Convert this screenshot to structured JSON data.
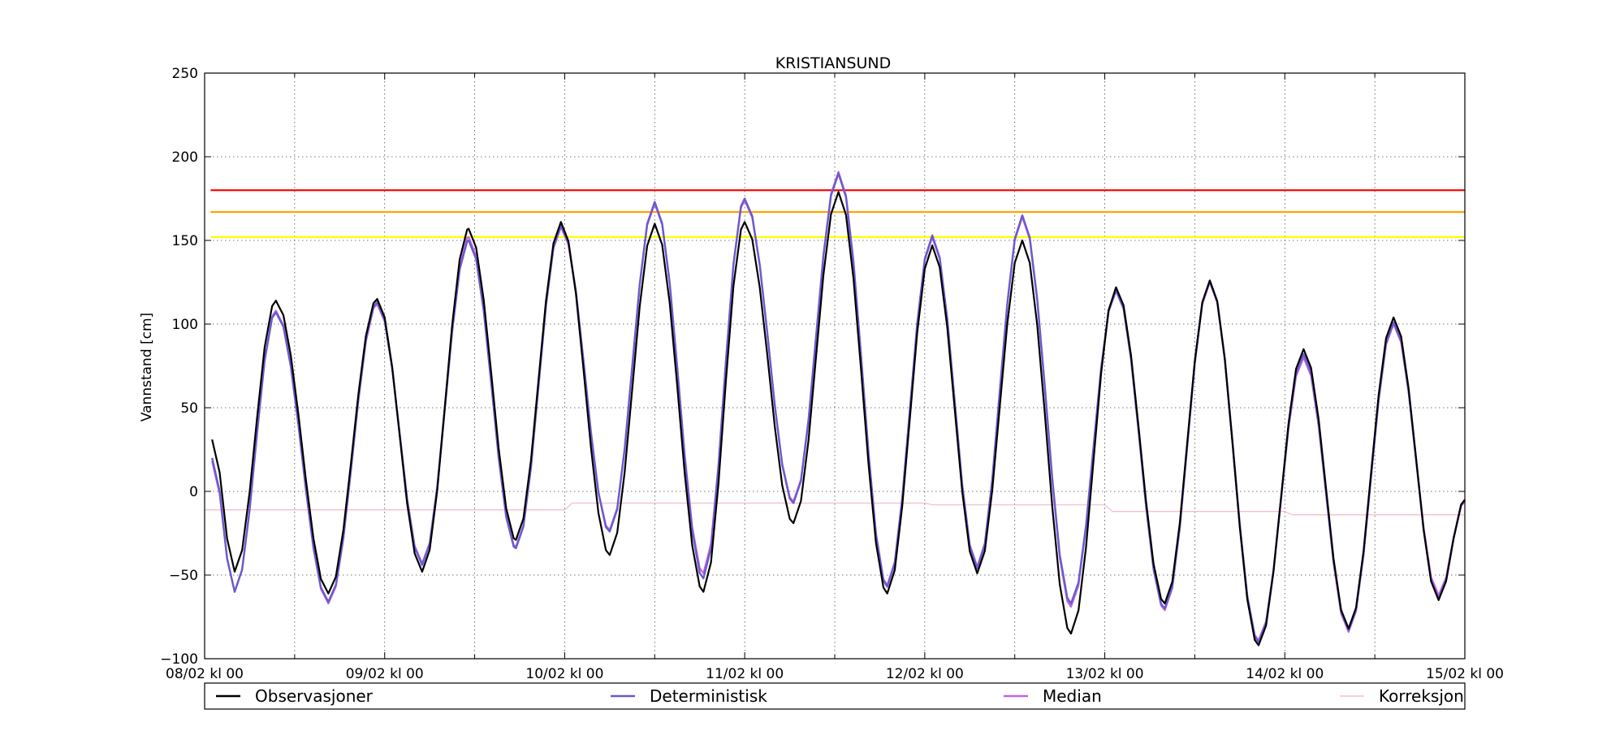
{
  "chart_data": {
    "type": "line",
    "title": "KRISTIANSUND",
    "xlabel": "",
    "ylabel": "Vannstand [cm]",
    "ylim": [
      -100,
      250
    ],
    "yticks": [
      -100,
      -50,
      0,
      50,
      100,
      150,
      200,
      250
    ],
    "xlim_hours": [
      0,
      168
    ],
    "xticks": [
      {
        "hour": 0,
        "label": "08/02 kl 00"
      },
      {
        "hour": 24,
        "label": "09/02 kl 00"
      },
      {
        "hour": 48,
        "label": "10/02 kl 00"
      },
      {
        "hour": 72,
        "label": "11/02 kl 00"
      },
      {
        "hour": 96,
        "label": "12/02 kl 00"
      },
      {
        "hour": 120,
        "label": "13/02 kl 00"
      },
      {
        "hour": 144,
        "label": "14/02 kl 00"
      },
      {
        "hour": 168,
        "label": "15/02 kl 00"
      }
    ],
    "minor_xtick_hours": [
      12,
      36,
      60,
      84,
      108,
      132,
      156
    ],
    "grid": true,
    "legend_position": "bottom",
    "thresholds": [
      {
        "value": 180,
        "color": "#ff0000"
      },
      {
        "value": 167,
        "color": "#ffa500"
      },
      {
        "value": 152,
        "color": "#ffff00"
      }
    ],
    "series": [
      {
        "name": "Observasjoner",
        "color": "#000000",
        "extrema": [
          [
            1,
            31
          ],
          [
            4,
            -48
          ],
          [
            9.5,
            114
          ],
          [
            16.5,
            -61
          ],
          [
            23,
            115
          ],
          [
            29,
            -48
          ],
          [
            35.2,
            157
          ],
          [
            41.5,
            -29
          ],
          [
            47.5,
            161
          ],
          [
            54,
            -38
          ],
          [
            60,
            160
          ],
          [
            66.5,
            -60
          ],
          [
            72,
            161
          ],
          [
            78.5,
            -19
          ],
          [
            84.5,
            179
          ],
          [
            91,
            -61
          ],
          [
            97,
            147
          ],
          [
            103,
            -49
          ],
          [
            109,
            150
          ],
          [
            115.5,
            -85
          ],
          [
            121.5,
            122
          ],
          [
            128,
            -67
          ],
          [
            134,
            126
          ],
          [
            140.5,
            -92
          ],
          [
            146.5,
            85
          ],
          [
            152.5,
            -82
          ],
          [
            158.5,
            104
          ],
          [
            164.5,
            -65
          ],
          [
            168,
            -5
          ]
        ]
      },
      {
        "name": "Deterministisk",
        "color": "#6a5acd",
        "extrema": [
          [
            1,
            20
          ],
          [
            4,
            -60
          ],
          [
            9.5,
            107
          ],
          [
            16.5,
            -66
          ],
          [
            23,
            113
          ],
          [
            29,
            -44
          ],
          [
            35.2,
            150
          ],
          [
            41.5,
            -34
          ],
          [
            47.5,
            159
          ],
          [
            54,
            -24
          ],
          [
            60,
            173
          ],
          [
            66.5,
            -52
          ],
          [
            72,
            175
          ],
          [
            78.5,
            -7
          ],
          [
            84.5,
            190
          ],
          [
            91,
            -57
          ],
          [
            97,
            153
          ],
          [
            103,
            -46
          ],
          [
            109,
            165
          ],
          [
            115.5,
            -67
          ],
          [
            121.5,
            120
          ],
          [
            128,
            -70
          ],
          [
            134,
            126
          ],
          [
            140.5,
            -90
          ],
          [
            146.5,
            82
          ],
          [
            152.5,
            -83
          ],
          [
            158.5,
            101
          ],
          [
            164.5,
            -64
          ],
          [
            168,
            -5
          ]
        ]
      },
      {
        "name": "Median",
        "color": "#c364e0",
        "extrema": [
          [
            1,
            18
          ],
          [
            4,
            -60
          ],
          [
            9.5,
            108
          ],
          [
            16.5,
            -67
          ],
          [
            23,
            112
          ],
          [
            29,
            -43
          ],
          [
            35.2,
            152
          ],
          [
            41.5,
            -33
          ],
          [
            47.5,
            158
          ],
          [
            54,
            -23
          ],
          [
            60,
            172
          ],
          [
            66.5,
            -49
          ],
          [
            72,
            174
          ],
          [
            78.5,
            -6
          ],
          [
            84.5,
            191
          ],
          [
            91,
            -56
          ],
          [
            97,
            152
          ],
          [
            103,
            -45
          ],
          [
            109,
            164
          ],
          [
            115.5,
            -69
          ],
          [
            121.5,
            121
          ],
          [
            128,
            -71
          ],
          [
            134,
            125
          ],
          [
            140.5,
            -89
          ],
          [
            146.5,
            80
          ],
          [
            152.5,
            -84
          ],
          [
            158.5,
            100
          ],
          [
            164.5,
            -62
          ],
          [
            168,
            -6
          ]
        ]
      },
      {
        "name": "Korreksjon",
        "color": "#f4c0c8",
        "steps": [
          [
            0,
            -11
          ],
          [
            48,
            -11
          ],
          [
            49,
            -7
          ],
          [
            96,
            -7
          ],
          [
            97,
            -8
          ],
          [
            120,
            -8
          ],
          [
            121,
            -12
          ],
          [
            144,
            -12
          ],
          [
            145,
            -14
          ],
          [
            168,
            -14
          ]
        ]
      }
    ]
  }
}
